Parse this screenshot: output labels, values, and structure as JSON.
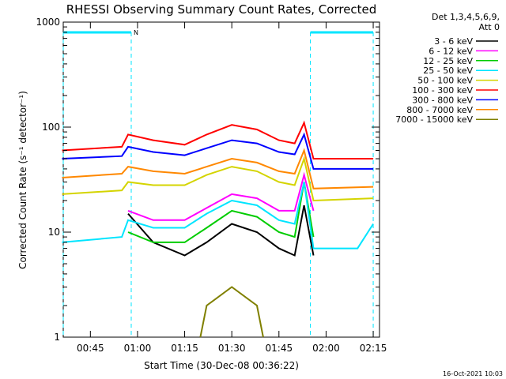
{
  "chart_data": {
    "type": "line",
    "title": "RHESSI Observing Summary Count Rates, Corrected",
    "xlabel": "Start Time (30-Dec-08 00:36:22)",
    "ylabel": "Corrected Count Rate (s⁻¹ detector⁻¹)",
    "y_scale": "log",
    "ylim": [
      1,
      1000
    ],
    "xlim": [
      "00:36:22",
      "02:17"
    ],
    "x_ticks": [
      "00:45",
      "01:00",
      "01:15",
      "01:30",
      "01:45",
      "02:00",
      "02:15"
    ],
    "y_ticks": [
      "1",
      "10",
      "100",
      "1000"
    ],
    "legend_header": [
      "Det 1,3,4,5,6,9,",
      "Att 0"
    ],
    "legend_position": "right",
    "flags": {
      "night_bars": [
        {
          "from": "00:36:22",
          "to": "00:58"
        },
        {
          "from": "01:55",
          "to": "02:15"
        }
      ],
      "night_label": "N"
    },
    "series": [
      {
        "name": "3 - 6 keV",
        "color": "#000000",
        "points": [
          [
            "00:57",
            15
          ],
          [
            "01:05",
            8
          ],
          [
            "01:15",
            6
          ],
          [
            "01:22",
            8
          ],
          [
            "01:30",
            12
          ],
          [
            "01:38",
            10
          ],
          [
            "01:45",
            7
          ],
          [
            "01:50",
            6
          ],
          [
            "01:53",
            18
          ],
          [
            "01:56",
            6
          ]
        ]
      },
      {
        "name": "6 - 12 keV",
        "color": "#ff00ff",
        "points": [
          [
            "00:57",
            16
          ],
          [
            "01:05",
            13
          ],
          [
            "01:15",
            13
          ],
          [
            "01:22",
            17
          ],
          [
            "01:30",
            23
          ],
          [
            "01:38",
            21
          ],
          [
            "01:45",
            16
          ],
          [
            "01:50",
            16
          ],
          [
            "01:53",
            35
          ],
          [
            "01:56",
            16
          ]
        ]
      },
      {
        "name": "12 - 25 keV",
        "color": "#00cc00",
        "points": [
          [
            "00:57",
            10
          ],
          [
            "01:05",
            8
          ],
          [
            "01:15",
            8
          ],
          [
            "01:22",
            11
          ],
          [
            "01:30",
            16
          ],
          [
            "01:38",
            14
          ],
          [
            "01:45",
            10
          ],
          [
            "01:50",
            9
          ],
          [
            "01:53",
            30
          ],
          [
            "01:56",
            9
          ]
        ]
      },
      {
        "name": "25 - 50 keV",
        "color": "#00e5ff",
        "points": [
          [
            "00:36",
            8
          ],
          [
            "00:55",
            9
          ],
          [
            "00:57",
            13
          ],
          [
            "01:05",
            11
          ],
          [
            "01:15",
            11
          ],
          [
            "01:22",
            15
          ],
          [
            "01:30",
            20
          ],
          [
            "01:38",
            18
          ],
          [
            "01:45",
            13
          ],
          [
            "01:50",
            12
          ],
          [
            "01:53",
            30
          ],
          [
            "01:56",
            7
          ],
          [
            "02:10",
            7
          ],
          [
            "02:15",
            12
          ]
        ]
      },
      {
        "name": "50 - 100 keV",
        "color": "#d4d400",
        "points": [
          [
            "00:36",
            23
          ],
          [
            "00:55",
            25
          ],
          [
            "00:57",
            30
          ],
          [
            "01:05",
            28
          ],
          [
            "01:15",
            28
          ],
          [
            "01:22",
            35
          ],
          [
            "01:30",
            42
          ],
          [
            "01:38",
            38
          ],
          [
            "01:45",
            30
          ],
          [
            "01:50",
            28
          ],
          [
            "01:53",
            50
          ],
          [
            "01:56",
            20
          ],
          [
            "02:15",
            21
          ]
        ]
      },
      {
        "name": "100 - 300 keV",
        "color": "#ff0000",
        "points": [
          [
            "00:36",
            60
          ],
          [
            "00:55",
            65
          ],
          [
            "00:57",
            85
          ],
          [
            "01:05",
            75
          ],
          [
            "01:15",
            68
          ],
          [
            "01:22",
            85
          ],
          [
            "01:30",
            105
          ],
          [
            "01:38",
            95
          ],
          [
            "01:45",
            75
          ],
          [
            "01:50",
            70
          ],
          [
            "01:53",
            110
          ],
          [
            "01:56",
            50
          ],
          [
            "02:15",
            50
          ]
        ]
      },
      {
        "name": "300 - 800 keV",
        "color": "#0000ff",
        "points": [
          [
            "00:36",
            50
          ],
          [
            "00:55",
            53
          ],
          [
            "00:57",
            65
          ],
          [
            "01:05",
            58
          ],
          [
            "01:15",
            54
          ],
          [
            "01:22",
            63
          ],
          [
            "01:30",
            75
          ],
          [
            "01:38",
            70
          ],
          [
            "01:45",
            58
          ],
          [
            "01:50",
            55
          ],
          [
            "01:53",
            85
          ],
          [
            "01:56",
            40
          ],
          [
            "02:15",
            40
          ]
        ]
      },
      {
        "name": "800 - 7000 keV",
        "color": "#ff8800",
        "points": [
          [
            "00:36",
            33
          ],
          [
            "00:55",
            36
          ],
          [
            "00:57",
            42
          ],
          [
            "01:05",
            38
          ],
          [
            "01:15",
            36
          ],
          [
            "01:22",
            42
          ],
          [
            "01:30",
            50
          ],
          [
            "01:38",
            46
          ],
          [
            "01:45",
            38
          ],
          [
            "01:50",
            36
          ],
          [
            "01:53",
            60
          ],
          [
            "01:56",
            26
          ],
          [
            "02:15",
            27
          ]
        ]
      },
      {
        "name": "7000 - 15000 keV",
        "color": "#808000",
        "points": [
          [
            "01:20",
            1
          ],
          [
            "01:22",
            2
          ],
          [
            "01:30",
            3
          ],
          [
            "01:38",
            2
          ],
          [
            "01:40",
            1
          ]
        ]
      }
    ],
    "corner_timestamp": "16-Oct-2021 10:03"
  }
}
